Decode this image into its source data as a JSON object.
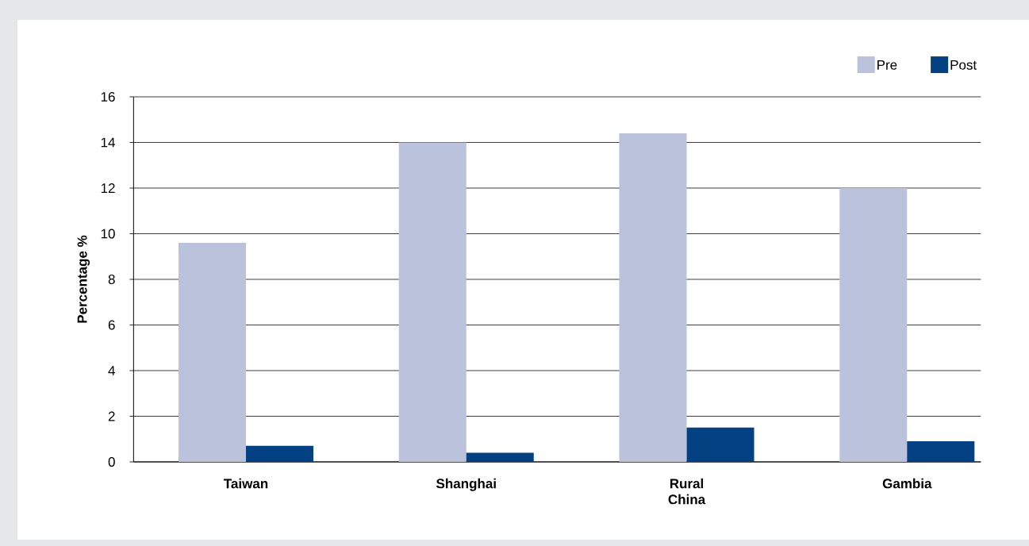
{
  "chart_data": {
    "type": "bar",
    "ylabel": "Percentage %",
    "categories": [
      "Taiwan",
      "Shanghai",
      "Rural China",
      "Gambia"
    ],
    "series": [
      {
        "name": "Pre",
        "color": "#bbc3dc",
        "values": [
          9.6,
          14.0,
          14.4,
          12.0
        ]
      },
      {
        "name": "Post",
        "color": "#034182",
        "values": [
          0.7,
          0.4,
          1.5,
          0.9
        ]
      }
    ],
    "ylim": [
      0,
      16
    ],
    "yticks": [
      0,
      2,
      4,
      6,
      8,
      10,
      12,
      14,
      16
    ],
    "grid": "y",
    "legend": "top right"
  }
}
